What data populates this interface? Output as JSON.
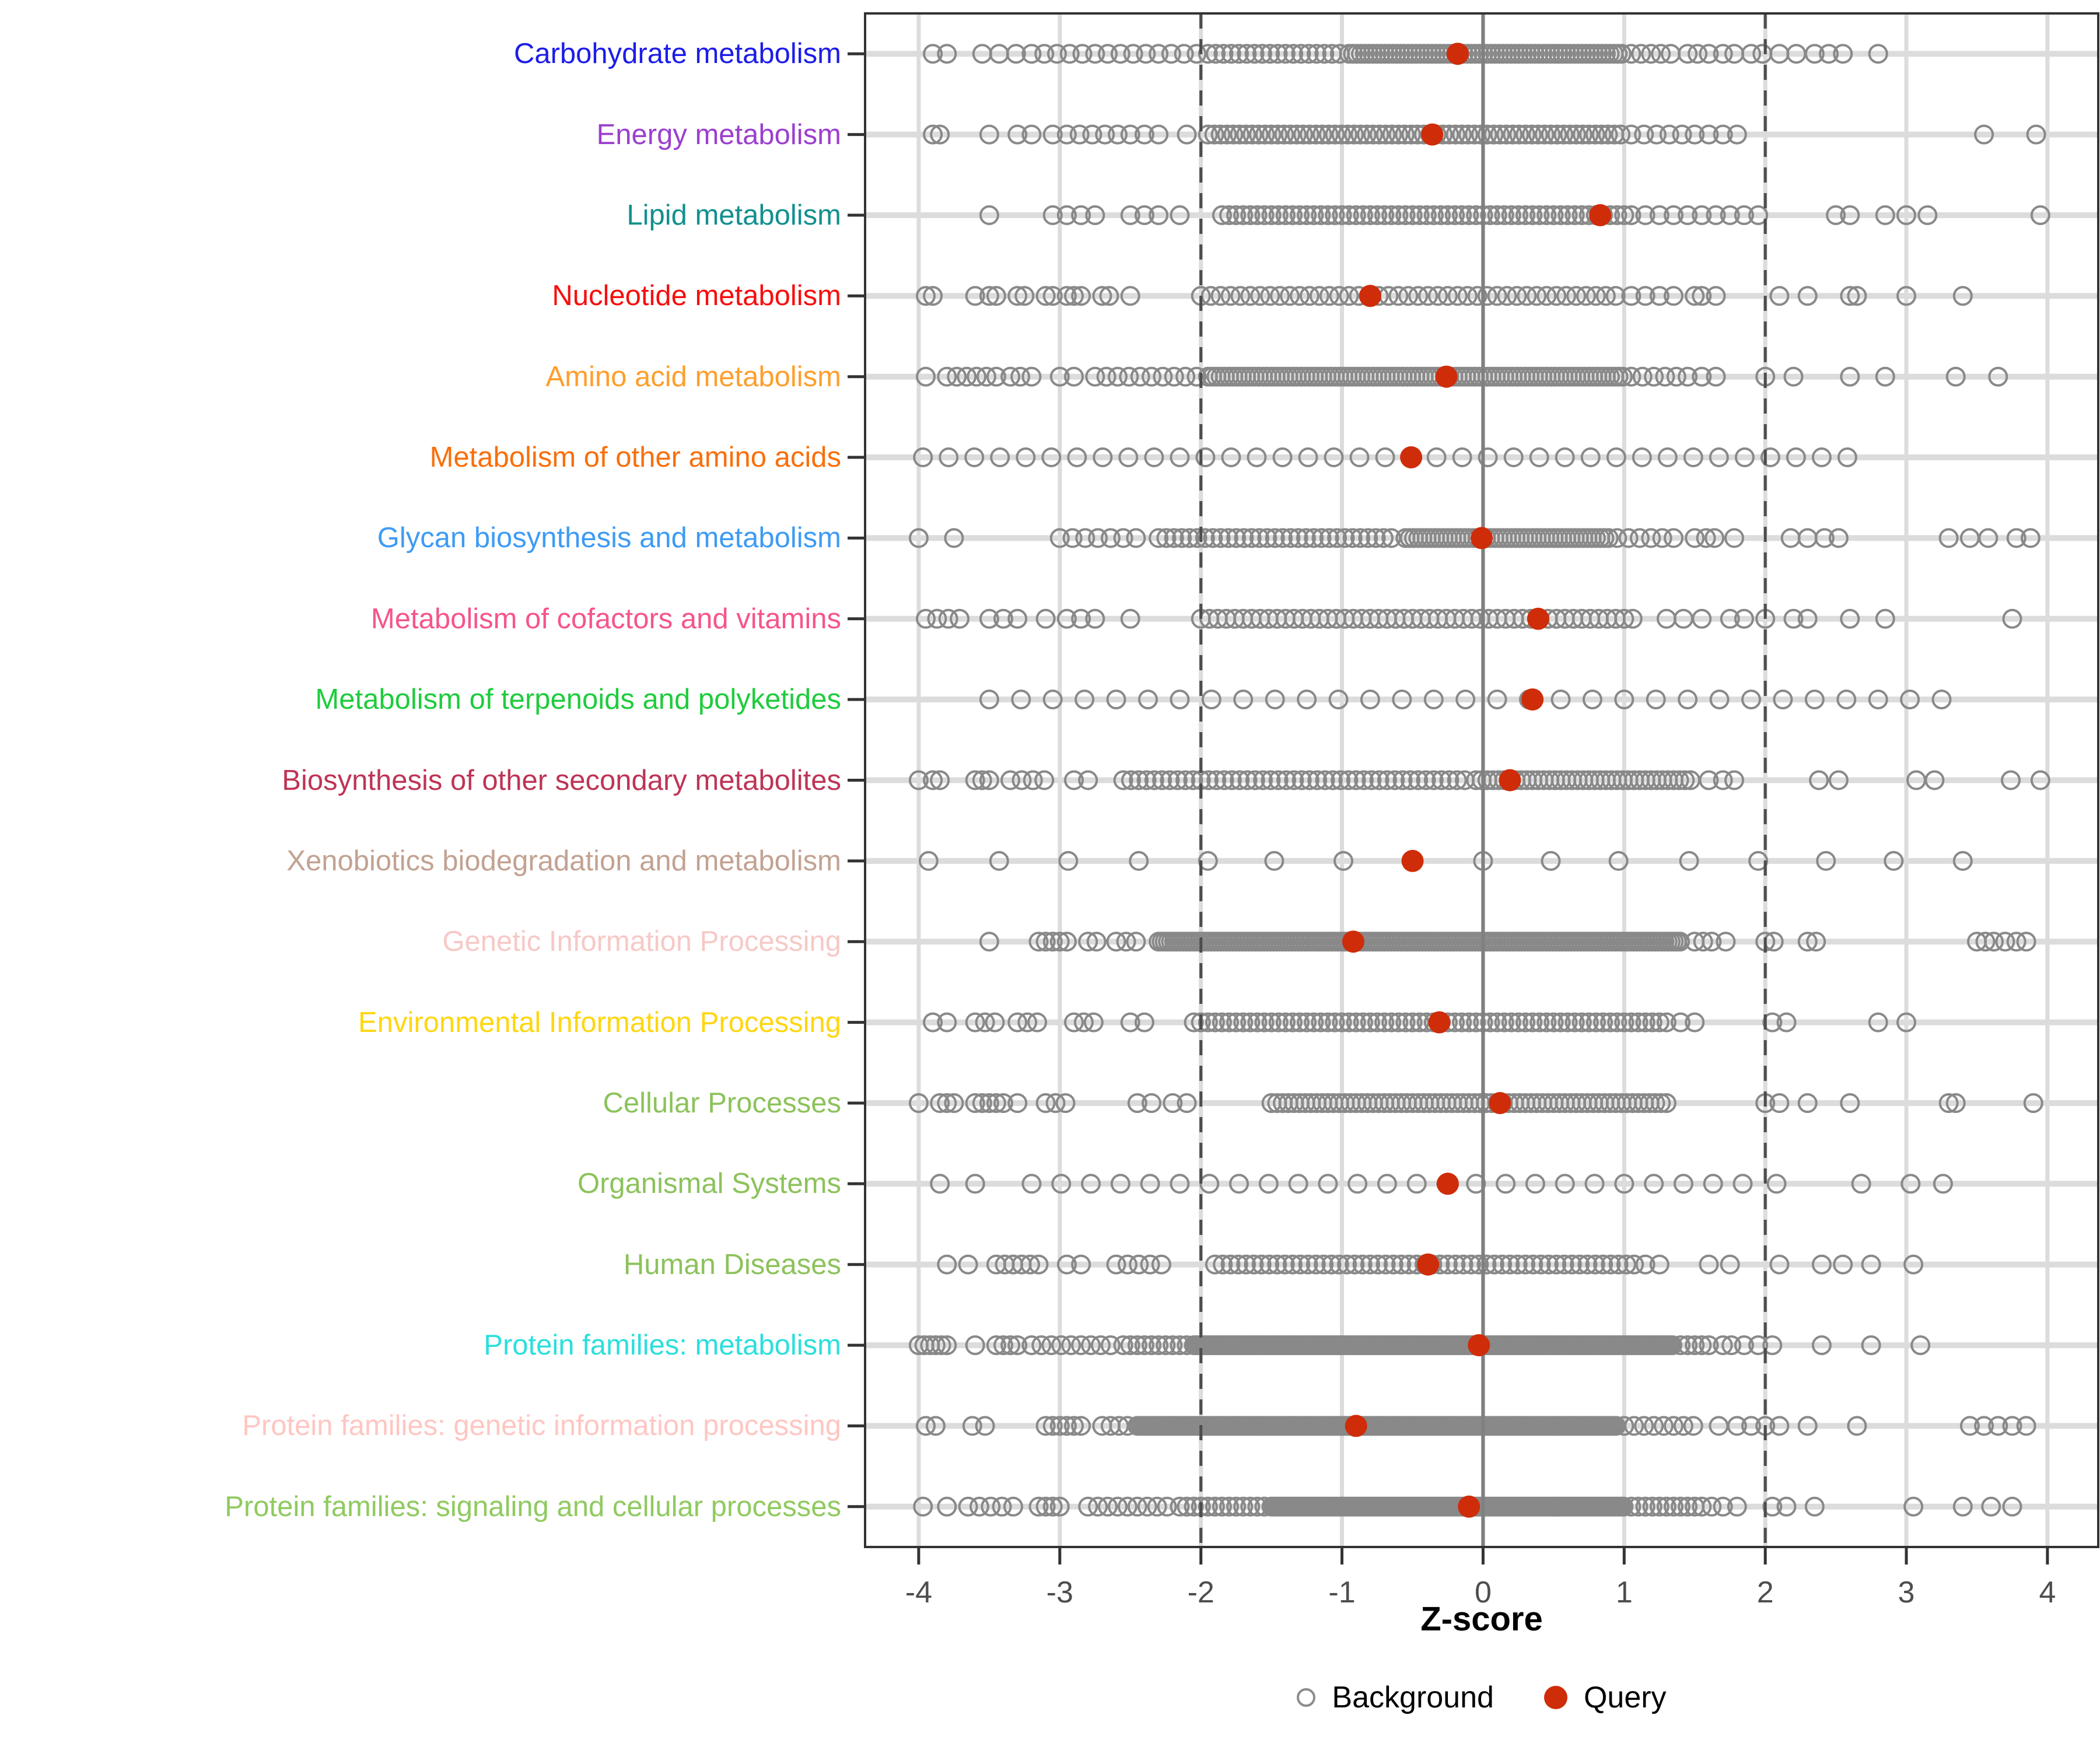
{
  "chart_data": {
    "type": "scatter",
    "xlabel": "Z-score",
    "x_ticks": [
      -4,
      -3,
      -2,
      -1,
      0,
      1,
      2,
      3,
      4
    ],
    "xlim": [
      -4.38,
      4.36
    ],
    "grid": "on",
    "reference_lines": {
      "zero": 0,
      "thresholds": [
        -2,
        2
      ]
    },
    "legend": [
      {
        "label": "Background",
        "marker": "open-circle",
        "color": "#8C8C8C"
      },
      {
        "label": "Query",
        "marker": "filled-circle",
        "color": "#CF2C09"
      }
    ],
    "colors": {
      "grid": "#DCDCDC",
      "zero_line": "#808080",
      "threshold_line": "#4D4D4D",
      "panel_border": "#333333",
      "tick": "#333333",
      "tick_label": "#4D4D4D",
      "background_point": "#898989",
      "query_point": "#CF2C09"
    },
    "categories": [
      {
        "label": "Carbohydrate metabolism",
        "color": "#1C1CE8",
        "query": -0.18,
        "background_segments": [
          [
            -3.9,
            -3.8,
            0.1
          ],
          [
            -3.55,
            -3.3,
            0.12
          ],
          [
            -3.2,
            -2.0,
            0.09
          ],
          [
            -1.95,
            -1.0,
            0.055
          ],
          [
            -0.95,
            1.0,
            0.028
          ],
          [
            1.05,
            1.35,
            0.07
          ]
        ],
        "background_points": [
          1.45,
          1.52,
          1.6,
          1.7,
          1.78,
          1.9,
          1.98,
          2.1,
          2.22,
          2.35,
          2.45,
          2.55,
          2.8
        ]
      },
      {
        "label": "Energy metabolism",
        "color": "#9C3FCE",
        "query": -0.36,
        "background_segments": [
          [
            -2.95,
            -2.55,
            0.09
          ],
          [
            -2.5,
            -2.3,
            0.1
          ],
          [
            -1.95,
            1.0,
            0.045
          ],
          [
            1.05,
            1.5,
            0.09
          ]
        ],
        "background_points": [
          -3.9,
          -3.85,
          -3.5,
          -3.3,
          -3.2,
          -3.05,
          -2.1,
          1.6,
          1.7,
          1.8,
          3.55,
          3.92
        ]
      },
      {
        "label": "Lipid metabolism",
        "color": "#12908E",
        "query": 0.83,
        "background_segments": [
          [
            -3.05,
            -2.75,
            0.1
          ],
          [
            -2.5,
            -2.3,
            0.1
          ],
          [
            -1.85,
            1.0,
            0.05
          ],
          [
            1.05,
            1.85,
            0.1
          ]
        ],
        "background_points": [
          -3.5,
          -2.15,
          1.95,
          2.5,
          2.6,
          2.85,
          3.0,
          3.15,
          3.95
        ]
      },
      {
        "label": "Nucleotide metabolism",
        "color": "#F80D0D",
        "query": -0.8,
        "background_segments": [
          [
            -2.0,
            1.0,
            0.07
          ],
          [
            1.05,
            1.35,
            0.1
          ]
        ],
        "background_points": [
          -3.95,
          -3.9,
          -3.6,
          -3.5,
          -3.45,
          -3.3,
          -3.25,
          -3.1,
          -3.05,
          -2.95,
          -2.9,
          -2.85,
          -2.7,
          -2.65,
          -2.5,
          1.5,
          1.55,
          1.65,
          2.1,
          2.3,
          2.6,
          2.65,
          3.0,
          3.4
        ]
      },
      {
        "label": "Amino acid metabolism",
        "color": "#FF9E2C",
        "query": -0.26,
        "background_segments": [
          [
            -3.8,
            -3.45,
            0.07
          ],
          [
            -2.75,
            -2.4,
            0.08
          ],
          [
            -2.35,
            -2.0,
            0.08
          ],
          [
            -1.95,
            1.0,
            0.03
          ],
          [
            1.05,
            1.45,
            0.08
          ]
        ],
        "background_points": [
          -3.95,
          -3.35,
          -3.28,
          -3.2,
          -3.0,
          -2.9,
          1.55,
          1.65,
          2.0,
          2.2,
          2.6,
          2.85,
          3.35,
          3.65
        ]
      },
      {
        "label": "Metabolism of other amino acids",
        "color": "#F96F0C",
        "query": -0.51,
        "background_segments": [
          [
            -3.97,
            2.72,
            0.182
          ]
        ],
        "background_points": []
      },
      {
        "label": "Glycan biosynthesis and metabolism",
        "color": "#3E9BF4",
        "query": -0.01,
        "background_segments": [
          [
            -3.0,
            -2.4,
            0.09
          ],
          [
            -2.3,
            -0.6,
            0.055
          ],
          [
            -0.55,
            0.9,
            0.03
          ],
          [
            0.95,
            1.4,
            0.08
          ]
        ],
        "background_points": [
          -4.0,
          -3.75,
          1.5,
          1.58,
          1.64,
          1.78,
          2.18,
          2.3,
          2.42,
          2.52,
          3.3,
          3.45,
          3.58,
          3.78,
          3.88
        ]
      },
      {
        "label": "Metabolism of cofactors and vitamins",
        "color": "#F6548C",
        "query": 0.39,
        "background_segments": [
          [
            -3.95,
            -3.7,
            0.08
          ],
          [
            -3.5,
            -3.3,
            0.1
          ],
          [
            -2.95,
            -2.75,
            0.1
          ],
          [
            -2.0,
            1.1,
            0.06
          ]
        ],
        "background_points": [
          -3.1,
          -2.5,
          1.3,
          1.42,
          1.55,
          1.75,
          1.85,
          2.0,
          2.2,
          2.3,
          2.6,
          2.85,
          3.75
        ]
      },
      {
        "label": "Metabolism of terpenoids and polyketides",
        "color": "#1ECC3C",
        "query": 0.35,
        "background_segments": [
          [
            -3.5,
            3.25,
            0.225
          ]
        ],
        "background_points": []
      },
      {
        "label": "Biosynthesis of other secondary metabolites",
        "color": "#BE3455",
        "query": 0.19,
        "background_segments": [
          [
            -3.35,
            -3.1,
            0.08
          ],
          [
            -2.55,
            -0.1,
            0.055
          ],
          [
            -0.05,
            1.5,
            0.04
          ]
        ],
        "background_points": [
          -4.0,
          -3.9,
          -3.85,
          -3.6,
          -3.55,
          -3.5,
          -2.9,
          -2.8,
          1.6,
          1.7,
          1.78,
          2.38,
          2.52,
          3.07,
          3.2,
          3.74,
          3.95
        ]
      },
      {
        "label": "Xenobiotics biodegradation and metabolism",
        "color": "#C2A292",
        "query": -0.5,
        "background_segments": [],
        "background_points": [
          -3.93,
          -3.43,
          -2.94,
          -2.44,
          -1.95,
          -1.48,
          -0.99,
          0.0,
          0.48,
          0.96,
          1.46,
          1.95,
          2.43,
          2.91,
          3.4
        ]
      },
      {
        "label": "Genetic Information Processing",
        "color": "#F6C9C6",
        "query": -0.92,
        "background_segments": [
          [
            -3.15,
            -2.95,
            0.05
          ],
          [
            -2.6,
            -2.45,
            0.07
          ],
          [
            -2.3,
            1.4,
            0.022
          ]
        ],
        "background_points": [
          -3.5,
          -2.8,
          -2.74,
          1.5,
          1.56,
          1.62,
          1.72,
          2.0,
          2.06,
          2.3,
          2.36,
          3.5,
          3.56,
          3.62,
          3.7,
          3.78,
          3.85
        ]
      },
      {
        "label": "Environmental Information Processing",
        "color": "#FFD60F",
        "query": -0.31,
        "background_segments": [
          [
            -3.6,
            -3.45,
            0.07
          ],
          [
            -3.3,
            -3.1,
            0.07
          ],
          [
            -2.9,
            -2.7,
            0.07
          ],
          [
            -2.05,
            1.3,
            0.05
          ]
        ],
        "background_points": [
          -3.9,
          -3.8,
          -2.5,
          -2.4,
          1.4,
          1.5,
          2.05,
          2.15,
          2.8,
          3.0
        ]
      },
      {
        "label": "Cellular Processes",
        "color": "#8CC25B",
        "query": 0.12,
        "background_segments": [
          [
            -3.85,
            -3.75,
            0.05
          ],
          [
            -3.6,
            -3.4,
            0.05
          ],
          [
            -3.1,
            -2.9,
            0.07
          ],
          [
            -1.5,
            1.3,
            0.04
          ]
        ],
        "background_points": [
          -4.0,
          -3.3,
          -2.45,
          -2.35,
          -2.2,
          -2.1,
          2.0,
          2.1,
          2.3,
          2.6,
          3.3,
          3.35,
          3.9
        ]
      },
      {
        "label": "Organismal Systems",
        "color": "#8CC25B",
        "query": -0.25,
        "background_segments": [
          [
            -3.2,
            1.9,
            0.21
          ]
        ],
        "background_points": [
          -3.85,
          -3.6,
          2.08,
          2.68,
          3.03,
          3.26
        ]
      },
      {
        "label": "Human Diseases",
        "color": "#8CC25B",
        "query": -0.39,
        "background_segments": [
          [
            -3.45,
            -3.15,
            0.06
          ],
          [
            -2.6,
            -2.25,
            0.08
          ],
          [
            -1.9,
            1.1,
            0.055
          ]
        ],
        "background_points": [
          -3.8,
          -3.65,
          -2.95,
          -2.85,
          1.15,
          1.25,
          1.6,
          1.75,
          2.1,
          2.4,
          2.55,
          2.75,
          3.05
        ]
      },
      {
        "label": "Protein families: metabolism",
        "color": "#2BDFDD",
        "query": -0.03,
        "background_segments": [
          [
            -4.0,
            -3.8,
            0.04
          ],
          [
            -3.45,
            -3.28,
            0.05
          ],
          [
            -3.2,
            -2.6,
            0.07
          ],
          [
            -2.55,
            -2.1,
            0.05
          ],
          [
            -2.05,
            1.35,
            0.016
          ],
          [
            1.4,
            1.6,
            0.05
          ]
        ],
        "background_points": [
          -3.6,
          1.7,
          1.76,
          1.85,
          1.95,
          2.05,
          2.4,
          2.75,
          3.1
        ]
      },
      {
        "label": "Protein families: genetic information processing",
        "color": "#FFC6C2",
        "query": -0.9,
        "background_segments": [
          [
            -3.1,
            -2.85,
            0.05
          ],
          [
            -2.7,
            -2.5,
            0.06
          ],
          [
            -2.45,
            0.95,
            0.016
          ],
          [
            1.0,
            1.55,
            0.07
          ]
        ],
        "background_points": [
          -3.95,
          -3.88,
          -3.62,
          -3.53,
          1.67,
          1.8,
          1.9,
          2.0,
          2.1,
          2.3,
          2.65,
          3.45,
          3.55,
          3.65,
          3.75,
          3.85
        ]
      },
      {
        "label": "Protein families: signaling and cellular processes",
        "color": "#8FCA5F",
        "query": -0.1,
        "background_segments": [
          [
            -3.65,
            -3.3,
            0.08
          ],
          [
            -3.15,
            -3.0,
            0.05
          ],
          [
            -2.8,
            -2.2,
            0.07
          ],
          [
            -2.15,
            -1.55,
            0.05
          ],
          [
            -1.5,
            1.0,
            0.016
          ],
          [
            1.05,
            1.55,
            0.05
          ]
        ],
        "background_points": [
          -3.97,
          -3.8,
          1.62,
          1.7,
          1.8,
          2.05,
          2.15,
          2.35,
          3.05,
          3.4,
          3.6,
          3.75
        ]
      }
    ]
  }
}
